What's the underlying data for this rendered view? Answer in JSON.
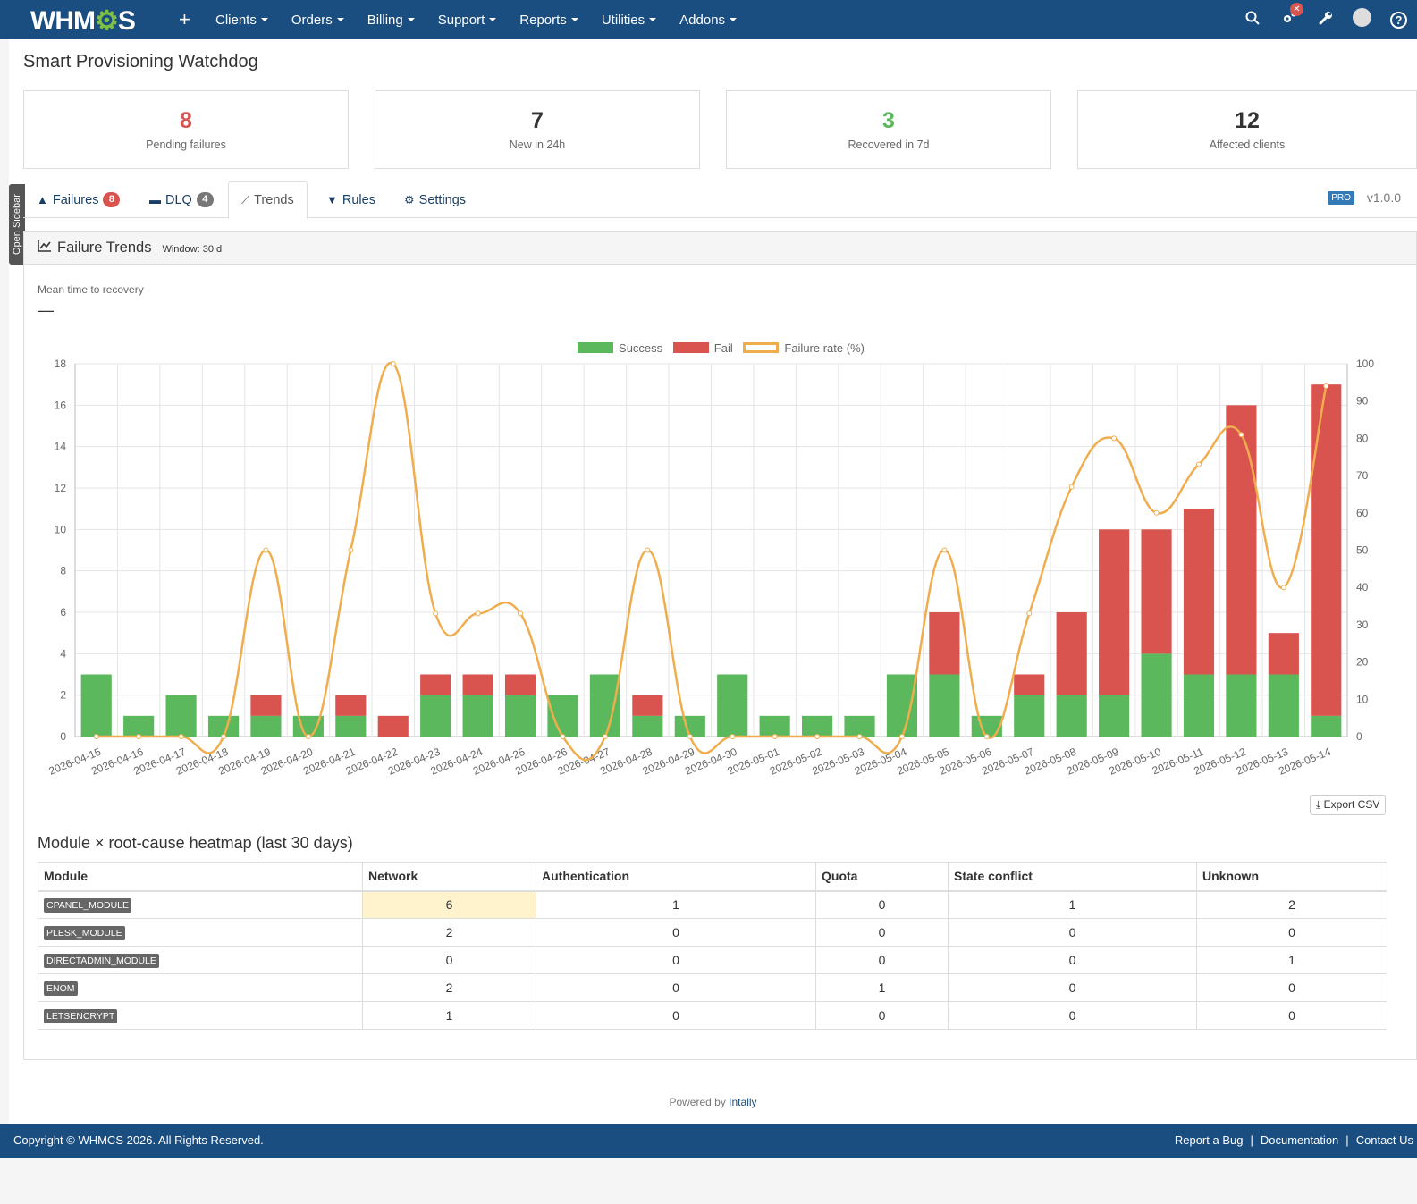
{
  "topbar": {
    "logo_pre": "WHM",
    "logo_gear": "⚙",
    "logo_post": "S",
    "add_icon": "+",
    "menu": [
      "Clients",
      "Orders",
      "Billing",
      "Support",
      "Reports",
      "Utilities",
      "Addons"
    ],
    "notif_badge": "✕"
  },
  "sidebar_toggle": "Open Sidebar",
  "page_title": "Smart Provisioning Watchdog",
  "stats": [
    {
      "value": "8",
      "label": "Pending failures",
      "color": "#d9534f"
    },
    {
      "value": "7",
      "label": "New in 24h",
      "color": "#333333"
    },
    {
      "value": "3",
      "label": "Recovered in 7d",
      "color": "#5cb85c"
    },
    {
      "value": "12",
      "label": "Affected clients",
      "color": "#333333"
    }
  ],
  "tabs": {
    "failures": {
      "label": "Failures",
      "badge": "8"
    },
    "dlq": {
      "label": "DLQ",
      "badge": "4"
    },
    "trends": {
      "label": "Trends"
    },
    "rules": {
      "label": "Rules"
    },
    "settings": {
      "label": "Settings"
    }
  },
  "pro_badge": "PRO",
  "version": "v1.0.0",
  "panel": {
    "title": "Failure Trends",
    "window": "Window: 30 d",
    "mttr_label": "Mean time to recovery",
    "mttr_value": "—"
  },
  "legend": {
    "success": "Success",
    "fail": "Fail",
    "rate": "Failure rate (%)"
  },
  "colors": {
    "success": "#5cb85c",
    "fail": "#d9534f",
    "rate": "#f0ad4e",
    "brand": "#1a4d80"
  },
  "chart_data": {
    "type": "bar",
    "stacked": true,
    "categories": [
      "2026-04-15",
      "2026-04-16",
      "2026-04-17",
      "2026-04-18",
      "2026-04-19",
      "2026-04-20",
      "2026-04-21",
      "2026-04-22",
      "2026-04-23",
      "2026-04-24",
      "2026-04-25",
      "2026-04-26",
      "2026-04-27",
      "2026-04-28",
      "2026-04-29",
      "2026-04-30",
      "2026-05-01",
      "2026-05-02",
      "2026-05-03",
      "2026-05-04",
      "2026-05-05",
      "2026-05-06",
      "2026-05-07",
      "2026-05-08",
      "2026-05-09",
      "2026-05-10",
      "2026-05-11",
      "2026-05-12",
      "2026-05-13",
      "2026-05-14"
    ],
    "series": [
      {
        "name": "Success",
        "type": "bar",
        "axis": "left",
        "values": [
          3,
          1,
          2,
          1,
          1,
          1,
          1,
          0,
          2,
          2,
          2,
          2,
          3,
          1,
          1,
          3,
          1,
          1,
          1,
          3,
          3,
          1,
          2,
          2,
          2,
          4,
          3,
          3,
          3,
          1
        ]
      },
      {
        "name": "Fail",
        "type": "bar",
        "axis": "left",
        "values": [
          0,
          0,
          0,
          0,
          1,
          0,
          1,
          1,
          1,
          1,
          1,
          0,
          0,
          1,
          0,
          0,
          0,
          0,
          0,
          0,
          3,
          0,
          1,
          4,
          8,
          6,
          8,
          13,
          2,
          16
        ]
      },
      {
        "name": "Failure rate (%)",
        "type": "line",
        "axis": "right",
        "values": [
          0,
          0,
          0,
          0,
          50,
          0,
          50,
          100,
          33,
          33,
          33,
          0,
          0,
          50,
          0,
          0,
          0,
          0,
          0,
          0,
          50,
          0,
          33,
          67,
          80,
          60,
          73,
          81,
          40,
          94
        ]
      }
    ],
    "ylim": [
      0,
      18
    ],
    "yticks": [
      0,
      2,
      4,
      6,
      8,
      10,
      12,
      14,
      16,
      18
    ],
    "y2lim": [
      0,
      100
    ],
    "y2ticks": [
      0,
      10,
      20,
      30,
      40,
      50,
      60,
      70,
      80,
      90,
      100
    ],
    "grid": true,
    "legend_position": "top-center"
  },
  "export_label": "Export CSV",
  "heatmap": {
    "title": "Module × root-cause heatmap (last 30 days)",
    "columns": [
      "Module",
      "Network",
      "Authentication",
      "Quota",
      "State conflict",
      "Unknown"
    ],
    "rows": [
      {
        "module": "CPANEL_MODULE",
        "values": [
          "6",
          "1",
          "0",
          "1",
          "2"
        ]
      },
      {
        "module": "PLESK_MODULE",
        "values": [
          "2",
          "0",
          "0",
          "0",
          "0"
        ]
      },
      {
        "module": "DIRECTADMIN_MODULE",
        "values": [
          "0",
          "0",
          "0",
          "0",
          "1"
        ]
      },
      {
        "module": "ENOM",
        "values": [
          "2",
          "0",
          "1",
          "0",
          "0"
        ]
      },
      {
        "module": "LETSENCRYPT",
        "values": [
          "1",
          "0",
          "0",
          "0",
          "0"
        ]
      }
    ]
  },
  "powered_by": "Powered by",
  "powered_link": "Intally",
  "footer": {
    "copyright": "Copyright © WHMCS 2026. All Rights Reserved.",
    "links": [
      "Report a Bug",
      "Documentation",
      "Contact Us"
    ],
    "separator": "|"
  }
}
